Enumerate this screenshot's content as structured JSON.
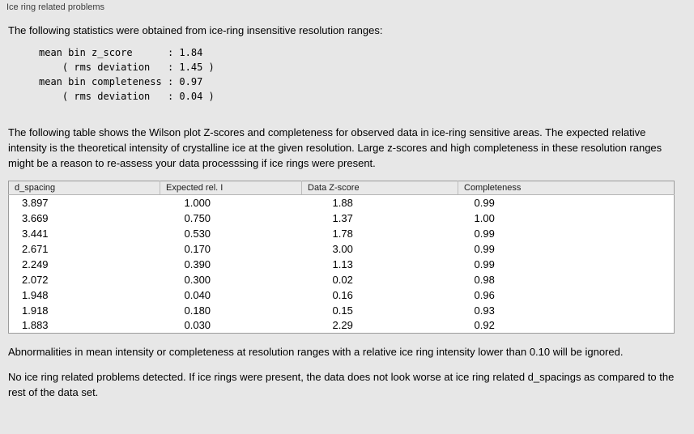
{
  "panel": {
    "title": "Ice ring related problems"
  },
  "intro": {
    "text": "The following statistics were obtained from ice-ring insensitive resolution ranges:",
    "stats_block": "mean bin z_score      : 1.84\n    ( rms deviation   : 1.45 )\nmean bin completeness : 0.97\n    ( rms deviation   : 0.04 )"
  },
  "description": "The following table shows the Wilson plot Z-scores and completeness for observed data in ice-ring sensitive areas. The expected relative intensity is the theoretical intensity of crystalline ice at the given resolution. Large z-scores and high completeness in these resolution ranges might be a reason to re-assess your data processsing if ice rings were present.",
  "table": {
    "columns": [
      "d_spacing",
      "Expected rel. I",
      "Data Z-score",
      "Completeness"
    ],
    "column_keys": [
      "d_spacing",
      "expected_rel_i",
      "data_z_score",
      "completeness"
    ],
    "rows": [
      [
        "3.897",
        "1.000",
        "1.88",
        "0.99"
      ],
      [
        "3.669",
        "0.750",
        "1.37",
        "1.00"
      ],
      [
        "3.441",
        "0.530",
        "1.78",
        "0.99"
      ],
      [
        "2.671",
        "0.170",
        "3.00",
        "0.99"
      ],
      [
        "2.249",
        "0.390",
        "1.13",
        "0.99"
      ],
      [
        "2.072",
        "0.300",
        "0.02",
        "0.98"
      ],
      [
        "1.948",
        "0.040",
        "0.16",
        "0.96"
      ],
      [
        "1.918",
        "0.180",
        "0.15",
        "0.93"
      ],
      [
        "1.883",
        "0.030",
        "2.29",
        "0.92"
      ]
    ]
  },
  "notes": {
    "abnormalities": "Abnormalities in mean intensity or completeness at resolution ranges with a relative ice ring intensity lower than 0.10 will be ignored.",
    "conclusion": "No ice ring related problems detected. If ice rings were present, the data does not look worse at ice ring related d_spacings as compared to the rest of the data set."
  }
}
